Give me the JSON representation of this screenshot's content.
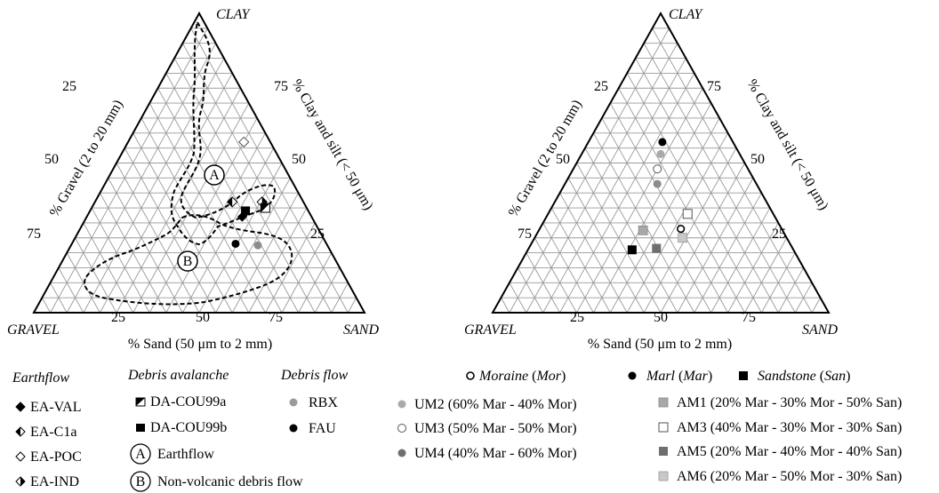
{
  "chart_data": [
    {
      "type": "scatter",
      "subtype": "ternary",
      "vertices": {
        "top": "CLAY",
        "left": "GRAVEL",
        "right": "SAND"
      },
      "axes": {
        "left": {
          "label": "% Gravel (2 to 20 mm)",
          "ticks": [
            "25",
            "50",
            "75"
          ]
        },
        "right": {
          "label": "% Clay and silt (< 50 μm)",
          "ticks": [
            "75",
            "50",
            "25"
          ]
        },
        "bottom": {
          "label": "% Sand (50 μm to 2 mm)",
          "ticks": [
            "25",
            "50",
            "75"
          ]
        }
      },
      "grid": true,
      "points": [
        {
          "name": "EA-VAL",
          "marker": "diamond-left-filled",
          "sand": 47,
          "clay": 32
        },
        {
          "name": "EA-C1a",
          "marker": "diamond-right-filled",
          "sand": 41.5,
          "clay": 37
        },
        {
          "name": "EA-POC",
          "marker": "diamond-open",
          "sand": 35,
          "clay": 57
        },
        {
          "name": "EA-IND",
          "marker": "diamond-top-filled",
          "sand": 50.5,
          "clay": 37
        },
        {
          "name": "DA-COU99a",
          "marker": "square-half",
          "sand": 52.5,
          "clay": 35
        },
        {
          "name": "DA-COU99b",
          "marker": "square-filled",
          "sand": 47,
          "clay": 34
        },
        {
          "name": "RBX",
          "marker": "circle-gray",
          "sand": 56.5,
          "clay": 22.5
        },
        {
          "name": "FAU",
          "marker": "circle-black",
          "sand": 49.5,
          "clay": 23
        }
      ],
      "fields": [
        {
          "label": "A",
          "name": "Earthflow"
        },
        {
          "label": "B",
          "name": "Non-volcanic debris flow"
        }
      ],
      "legend": {
        "placement": "bottom",
        "groups": [
          {
            "title": "Earthflow",
            "items": [
              "EA-VAL",
              "EA-C1a",
              "EA-POC",
              "EA-IND"
            ]
          },
          {
            "title": "Debris avalanche",
            "items": [
              "DA-COU99a",
              "DA-COU99b"
            ],
            "fields": [
              {
                "label": "A",
                "text": "Earthflow"
              },
              {
                "label": "B",
                "text": "Non-volcanic debris flow"
              }
            ]
          },
          {
            "title": "Debris flow",
            "items": [
              "RBX",
              "FAU"
            ]
          }
        ]
      }
    },
    {
      "type": "scatter",
      "subtype": "ternary",
      "vertices": {
        "top": "CLAY",
        "left": "GRAVEL",
        "right": "SAND"
      },
      "axes": {
        "left": {
          "label": "% Gravel (2 to 20 mm)",
          "ticks": [
            "25",
            "50",
            "75"
          ]
        },
        "right": {
          "label": "% Clay and silt (< 50 μm)",
          "ticks": [
            "75",
            "50",
            "25"
          ]
        },
        "bottom": {
          "label": "% Sand (50 μm to 2 mm)",
          "ticks": [
            "25",
            "50",
            "75"
          ]
        }
      },
      "grid": true,
      "points": [
        {
          "name": "Mor",
          "marker": "circle-open-bold",
          "sand": 42,
          "clay": 28
        },
        {
          "name": "Mar",
          "marker": "circle-black",
          "sand": 22,
          "clay": 57
        },
        {
          "name": "San",
          "marker": "square-black",
          "sand": 31,
          "clay": 21
        },
        {
          "name": "UM2",
          "marker": "circle-lightgray",
          "sand": 23.5,
          "clay": 53
        },
        {
          "name": "UM3",
          "marker": "circle-white",
          "sand": 25,
          "clay": 48
        },
        {
          "name": "UM4",
          "marker": "circle-gray",
          "sand": 27.5,
          "clay": 43
        },
        {
          "name": "AM1",
          "marker": "square-lightgray",
          "sand": 31,
          "clay": 27.5
        },
        {
          "name": "AM3",
          "marker": "square-white",
          "sand": 41.5,
          "clay": 33
        },
        {
          "name": "AM5",
          "marker": "square-darkgray",
          "sand": 38,
          "clay": 21.5
        },
        {
          "name": "AM6",
          "marker": "square-lightgray2",
          "sand": 44,
          "clay": 25
        }
      ],
      "legend": {
        "placement": "bottom",
        "items": [
          {
            "symbol": "circle-open-bold",
            "text": "Moraine (Mor)",
            "name": "Moraine",
            "abbr": "Mor"
          },
          {
            "symbol": "circle-black",
            "text": "Marl (Mar)",
            "name": "Marl",
            "abbr": "Mar"
          },
          {
            "symbol": "square-black",
            "text": "Sandstone (San)",
            "name": "Sandstone",
            "abbr": "San"
          },
          {
            "symbol": "circle-lightgray",
            "text": "UM2 (60% Mar - 40% Mor)"
          },
          {
            "symbol": "square-lightgray",
            "text": "AM1 (20% Mar - 30% Mor - 50% San)"
          },
          {
            "symbol": "circle-white",
            "text": "UM3 (50% Mar - 50% Mor)"
          },
          {
            "symbol": "square-white",
            "text": "AM3 (40% Mar - 30% Mor - 30% San)"
          },
          {
            "symbol": "circle-gray",
            "text": "UM4 (40% Mar - 60% Mor)"
          },
          {
            "symbol": "square-darkgray",
            "text": "AM5 (20% Mar - 40% Mor - 40% San)"
          },
          {
            "symbol": "square-lightgray2",
            "text": "AM6 (20% Mar - 50% Mor - 30% San)"
          }
        ]
      }
    }
  ],
  "colors": {
    "grid": "#9a9a9a",
    "frame": "#000000",
    "gray": "#9b9b9b",
    "lightgray": "#c8c8c8",
    "darkgray": "#6e6e6e"
  }
}
